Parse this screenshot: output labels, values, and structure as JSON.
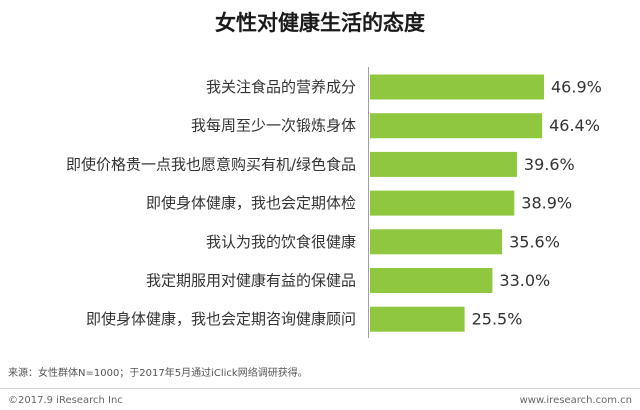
{
  "chart_data": {
    "type": "bar",
    "orientation": "horizontal",
    "title": "女性对健康生活的态度",
    "categories": [
      "我关注食品的营养成分",
      "我每周至少一次锻炼身体",
      "即使价格贵一点我也愿意购买有机/绿色食品",
      "即使身体健康，我也会定期体检",
      "我认为我的饮食很健康",
      "我定期服用对健康有益的保健品",
      "即使身体健康，我也会定期咨询健康顾问"
    ],
    "values": [
      46.9,
      46.4,
      39.6,
      38.9,
      35.6,
      33.0,
      25.5
    ],
    "value_labels": [
      "46.9%",
      "46.4%",
      "39.6%",
      "38.9%",
      "35.6%",
      "33.0%",
      "25.5%"
    ],
    "bar_color": "#8fc73e",
    "grid": false,
    "legend": false
  },
  "source_note": "来源：女性群体N=1000；于2017年5月通过iClick网络调研获得。",
  "footer": {
    "copyright": "©2017.9 iResearch Inc",
    "website": "www.iresearch.com.cn"
  }
}
